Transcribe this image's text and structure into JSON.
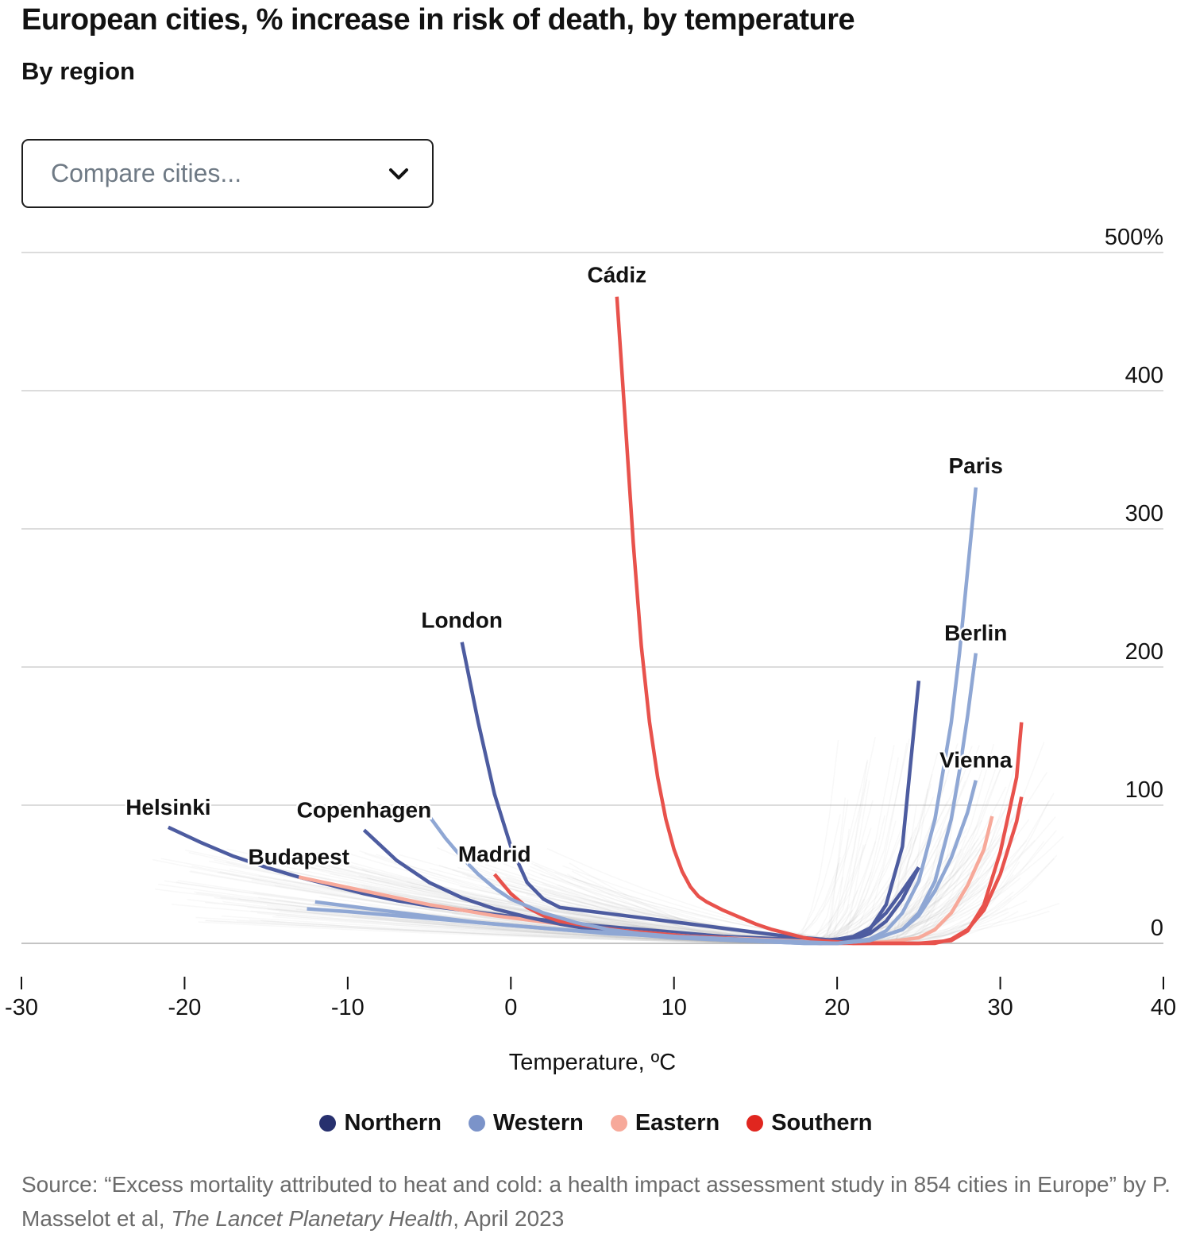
{
  "title": "European cities, % increase in risk of death, by temperature",
  "subtitle": "By region",
  "dropdown": {
    "placeholder": "Compare cities...",
    "icon": "chevron-down-icon"
  },
  "source": {
    "prefix": "Source: “Excess mortality attributed to heat and cold: a health impact assessment study in 854 cities in Europe” by P. Masselot et al,",
    "publication": "The Lancet Planetary Health",
    "suffix": ", April 2023"
  },
  "chart_data": {
    "type": "line",
    "title": "European cities, % increase in risk of death, by temperature",
    "subtitle": "By region",
    "xlabel": "Temperature, ºC",
    "ylabel": "",
    "xlim": [
      -30,
      40
    ],
    "ylim": [
      0,
      500
    ],
    "x_ticks": [
      "-30",
      "-20",
      "-10",
      "0",
      "10",
      "20",
      "30",
      "40"
    ],
    "y_ticks": [
      "0",
      "100",
      "200",
      "300",
      "400",
      "500%"
    ],
    "y_tick_values": [
      0,
      100,
      200,
      300,
      400,
      500
    ],
    "x_tick_values": [
      -30,
      -20,
      -10,
      0,
      10,
      20,
      30,
      40
    ],
    "grid": "horizontal",
    "legend": {
      "position": "bottom",
      "entries": [
        {
          "name": "Northern",
          "color": "#27306e"
        },
        {
          "name": "Western",
          "color": "#7b93c9"
        },
        {
          "name": "Eastern",
          "color": "#f7a99a"
        },
        {
          "name": "Southern",
          "color": "#e0261f"
        }
      ]
    },
    "series": [
      {
        "label": "Helsinki",
        "region": "Northern",
        "color": "#4d5ca0",
        "x": [
          -21,
          -19,
          -17,
          -15,
          -13,
          -11,
          -9,
          -7,
          -5,
          -3,
          -1,
          1,
          3,
          5,
          7,
          9,
          11,
          13,
          15,
          17,
          18,
          19,
          20,
          21,
          22,
          23,
          24,
          25
        ],
        "y": [
          84,
          73,
          63,
          55,
          48,
          42,
          36,
          31,
          27,
          24,
          21,
          18,
          16,
          13,
          11,
          9,
          7,
          5,
          4,
          3,
          2,
          2,
          3,
          5,
          11,
          22,
          38,
          55
        ]
      },
      {
        "label": "Budapest",
        "region": "Eastern",
        "color": "#f7a99a",
        "x": [
          -13,
          -11,
          -9,
          -7,
          -5,
          -3,
          -1,
          1,
          3,
          5,
          7,
          9,
          11,
          13,
          15,
          17,
          19,
          21,
          23,
          25,
          26,
          27,
          28,
          29,
          29.5
        ],
        "y": [
          48,
          43,
          38,
          33,
          28,
          24,
          20,
          17,
          14,
          11,
          9,
          7,
          5,
          4,
          3,
          2,
          1,
          0,
          1,
          4,
          10,
          22,
          42,
          68,
          92
        ]
      },
      {
        "label": "Copenhagen",
        "region": "Northern",
        "color": "#4d5ca0",
        "x": [
          -9,
          -7,
          -5,
          -3,
          -1,
          1,
          3,
          5,
          7,
          9,
          11,
          13,
          15,
          17,
          19,
          21,
          22,
          23,
          24,
          25
        ],
        "y": [
          82,
          60,
          44,
          33,
          25,
          19,
          14,
          10,
          8,
          6,
          4,
          3,
          2,
          1,
          0,
          3,
          10,
          28,
          70,
          190
        ]
      },
      {
        "label": "London",
        "region": "Northern",
        "color": "#4d5ca0",
        "x": [
          -3,
          -2,
          -1,
          0,
          1,
          2,
          3,
          5,
          7,
          9,
          11,
          13,
          15,
          17,
          19,
          20,
          21,
          22,
          23,
          24,
          25
        ],
        "y": [
          218,
          160,
          108,
          70,
          44,
          32,
          26,
          23,
          20,
          17,
          14,
          11,
          8,
          5,
          3,
          2,
          3,
          7,
          16,
          32,
          55
        ]
      },
      {
        "label": "Madrid",
        "region": "Southern",
        "color": "#e8524c",
        "x": [
          -1,
          0,
          1,
          2,
          3,
          5,
          7,
          9,
          11,
          13,
          15,
          17,
          19,
          21,
          23,
          25,
          27,
          28,
          29,
          30,
          31,
          31.3
        ],
        "y": [
          50,
          36,
          26,
          20,
          16,
          12,
          9,
          7,
          5,
          4,
          2,
          1,
          0,
          0,
          0,
          0,
          2,
          9,
          28,
          66,
          120,
          160
        ]
      },
      {
        "label": "Cádiz",
        "region": "Southern",
        "color": "#e8524c",
        "x": [
          6.5,
          7,
          7.5,
          8,
          8.5,
          9,
          9.5,
          10,
          10.5,
          11,
          11.5,
          12,
          13,
          14,
          15,
          16,
          17,
          18,
          19,
          20,
          21,
          22,
          23,
          24,
          25,
          26,
          27,
          28,
          29,
          30,
          31,
          31.3
        ],
        "y": [
          468,
          380,
          290,
          215,
          160,
          120,
          90,
          68,
          52,
          41,
          34,
          30,
          24,
          19,
          14,
          10,
          7,
          4,
          2,
          1,
          0,
          0,
          0,
          0,
          0,
          0,
          3,
          10,
          24,
          50,
          88,
          106
        ]
      },
      {
        "label": "Paris",
        "region": "Western",
        "color": "#8fa7d4",
        "x": [
          -12,
          -10,
          -8,
          -6,
          -4,
          -2,
          0,
          2,
          4,
          6,
          8,
          10,
          12,
          14,
          16,
          18,
          20,
          22,
          23,
          24,
          25,
          26,
          27,
          27.5,
          28,
          28.5
        ],
        "y": [
          30,
          27,
          24,
          21,
          18,
          15,
          13,
          11,
          9,
          7,
          6,
          4,
          3,
          2,
          1,
          0,
          0,
          3,
          9,
          22,
          45,
          90,
          160,
          210,
          270,
          330
        ]
      },
      {
        "label": "Berlin",
        "region": "Western",
        "color": "#8fa7d4",
        "x": [
          -12.5,
          -10,
          -8,
          -6,
          -4,
          -2,
          0,
          2,
          4,
          6,
          8,
          10,
          12,
          14,
          16,
          18,
          20,
          22,
          24,
          25,
          26,
          27,
          27.5,
          28,
          28.5
        ],
        "y": [
          25,
          23,
          21,
          19,
          17,
          15,
          13,
          11,
          9,
          8,
          6,
          5,
          4,
          3,
          2,
          1,
          0,
          2,
          10,
          22,
          45,
          90,
          125,
          165,
          210
        ]
      },
      {
        "label": "Vienna",
        "region": "Western",
        "color": "#8fa7d4",
        "x": [
          -5,
          -4,
          -3,
          -2,
          -1,
          0,
          2,
          4,
          6,
          8,
          10,
          12,
          14,
          16,
          18,
          20,
          22,
          24,
          25,
          26,
          27,
          28,
          28.5
        ],
        "y": [
          92,
          76,
          62,
          50,
          40,
          32,
          22,
          15,
          10,
          7,
          5,
          3,
          2,
          1,
          0,
          0,
          2,
          10,
          20,
          38,
          62,
          95,
          118
        ]
      }
    ]
  }
}
